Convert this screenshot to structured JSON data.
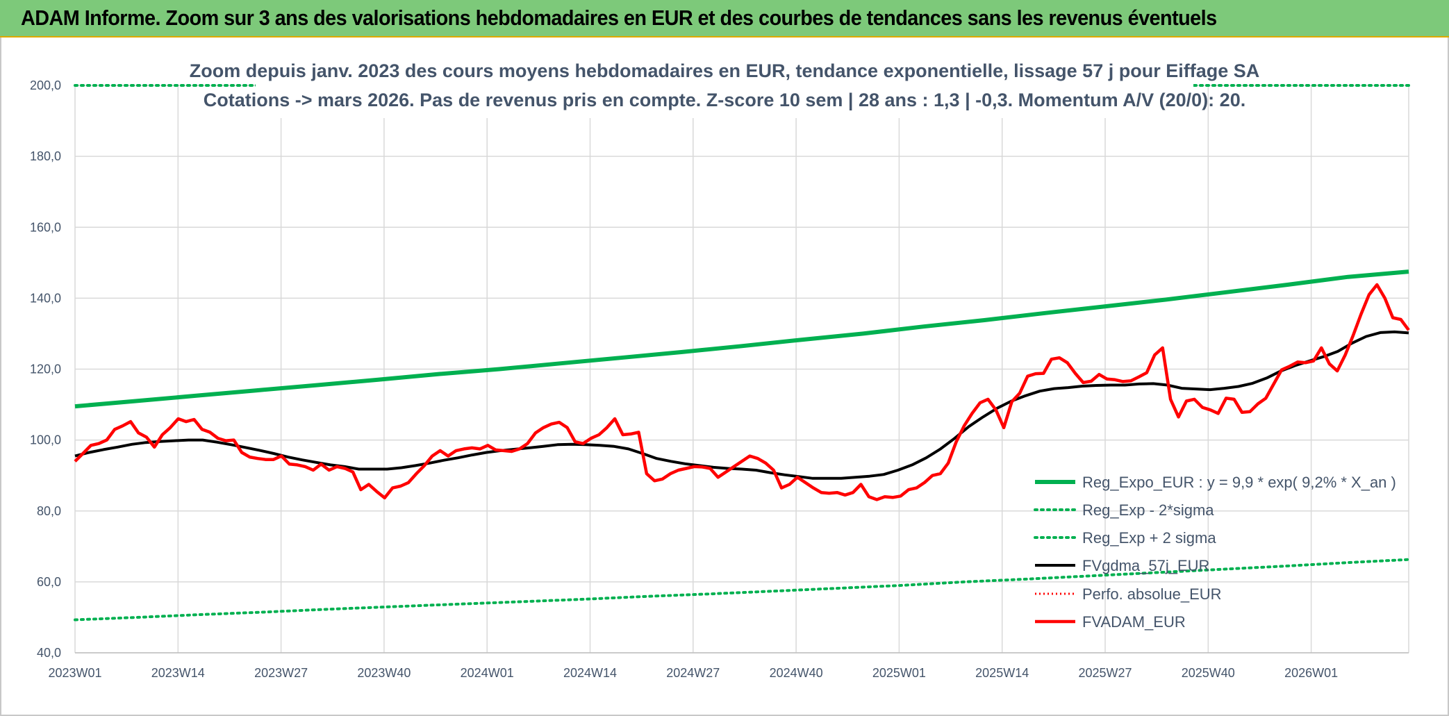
{
  "banner": {
    "title": "ADAM Informe. Zoom sur 3 ans des valorisations hebdomadaires en EUR et des courbes de tendances sans les revenus éventuels"
  },
  "chart_data": {
    "type": "line",
    "title_line1": "Zoom depuis janv. 2023 des cours moyens hebdomadaires en EUR, tendance exponentielle, lissage 57 j pour Eiffage SA",
    "title_line2": "Cotations -> mars 2026. Pas de revenus pris en compte. Z-score 10 sem | 28 ans : 1,3 | -0,3. Momentum A/V (20/0): 20.",
    "ylim": [
      40,
      200
    ],
    "yticks": [
      "40,0",
      "60,0",
      "80,0",
      "100,0",
      "120,0",
      "140,0",
      "160,0",
      "180,0",
      "200,0"
    ],
    "xticks": [
      "2023W01",
      "2023W14",
      "2023W27",
      "2023W40",
      "2024W01",
      "2024W14",
      "2024W27",
      "2024W40",
      "2025W01",
      "2025W14",
      "2025W27",
      "2025W40",
      "2026W01"
    ],
    "grid": true,
    "legend_position": "bottom-right",
    "series": [
      {
        "name": "Reg_Expo_EUR : y = 9,9 * exp( 9,2% *  X_an )",
        "color": "#00b050",
        "style": "solid-thick",
        "values": [
          109.5,
          111,
          112.5,
          114,
          115.5,
          117,
          118.6,
          120,
          121.6,
          123.2,
          124.8,
          126.5,
          128.3,
          130,
          132,
          133.8,
          135.8,
          137.7,
          139.6,
          141.7,
          143.8,
          146,
          147.5
        ]
      },
      {
        "name": "Reg_Exp - 2*sigma",
        "color": "#00b050",
        "style": "dotted",
        "values": [
          49.3,
          50,
          50.8,
          51.5,
          52.3,
          53,
          53.7,
          54.4,
          55.1,
          55.9,
          56.6,
          57.4,
          58.2,
          59,
          60,
          60.8,
          61.7,
          62.6,
          63.5,
          64.4,
          65.4,
          66.3
        ]
      },
      {
        "name": "Reg_Exp + 2 sigma",
        "color": "#00b050",
        "style": "dotted-top",
        "values": [
          200,
          200
        ]
      },
      {
        "name": "FVgdma_57j_EUR",
        "color": "#000000",
        "style": "solid",
        "values": [
          95.5,
          96.5,
          97.3,
          98,
          98.8,
          99.3,
          99.6,
          99.8,
          100,
          100,
          99.4,
          98.7,
          97.9,
          97.1,
          96.2,
          95.2,
          94.4,
          93.7,
          93,
          92.5,
          91.8,
          91.8,
          91.8,
          92.2,
          92.8,
          93.5,
          94.3,
          95,
          95.8,
          96.5,
          97,
          97.4,
          97.8,
          98.2,
          98.7,
          98.8,
          98.7,
          98.5,
          98.2,
          97.5,
          96.2,
          94.8,
          94,
          93.3,
          92.8,
          92.3,
          92,
          91.8,
          91.5,
          90.8,
          90.2,
          89.7,
          89.2,
          89.2,
          89.2,
          89.5,
          89.8,
          90.3,
          91.5,
          93,
          95,
          97.5,
          100.5,
          103.8,
          106.5,
          109,
          111,
          112.5,
          113.8,
          114.5,
          114.8,
          115.2,
          115.4,
          115.5,
          115.5,
          115.8,
          115.9,
          115.5,
          114.6,
          114.4,
          114.2,
          114.6,
          115.1,
          116,
          117.5,
          119.5,
          121,
          122.3,
          123.5,
          125,
          127.3,
          129.2,
          130.3,
          130.5,
          130.2
        ]
      },
      {
        "name": "Perfo. absolue_EUR",
        "color": "#ff0000",
        "style": "dotted-red",
        "values": []
      },
      {
        "name": "FVADAM_EUR",
        "color": "#ff0000",
        "style": "solid-red",
        "values": [
          94,
          96.2,
          98.5,
          99,
          100,
          103,
          104,
          105.2,
          102,
          100.8,
          98,
          101.5,
          103.5,
          106,
          105.2,
          105.8,
          103,
          102.2,
          100.5,
          99.8,
          100,
          96.5,
          95.2,
          94.8,
          94.5,
          94.5,
          95.5,
          93.2,
          93,
          92.5,
          91.5,
          93.2,
          91.5,
          92.5,
          92,
          91,
          86,
          87.5,
          85.5,
          83.7,
          86.5,
          87,
          88,
          90.5,
          92.8,
          95.5,
          97,
          95.5,
          97,
          97.5,
          97.8,
          97.5,
          98.5,
          97.2,
          97,
          96.8,
          97.5,
          99,
          102,
          103.5,
          104.5,
          105,
          103.5,
          99.5,
          99,
          100.5,
          101.5,
          103.5,
          106,
          101.5,
          101.7,
          102.2,
          90.5,
          88.5,
          89,
          90.5,
          91.5,
          92,
          92.5,
          92.4,
          92,
          89.5,
          91,
          92.5,
          94,
          95.5,
          94.8,
          93.5,
          91.5,
          86.5,
          87.5,
          89.5,
          88,
          86.5,
          85.2,
          85,
          85.2,
          84.5,
          85.2,
          87.5,
          84,
          83.2,
          84,
          83.8,
          84.2,
          86,
          86.5,
          88,
          90,
          90.5,
          93.5,
          99.5,
          104,
          107.5,
          110.5,
          111.5,
          108.5,
          103.5,
          110.8,
          113.2,
          118,
          118.7,
          118.8,
          122.8,
          123.2,
          121.8,
          118.8,
          116.2,
          116.6,
          118.5,
          117.2,
          117,
          116.5,
          116.7,
          117.8,
          119,
          124,
          126,
          111.5,
          106.5,
          111,
          111.5,
          109.2,
          108.5,
          107.5,
          111.8,
          111.5,
          107.8,
          108,
          110.2,
          111.8,
          115.8,
          119.8,
          120.8,
          122,
          121.8,
          122.3,
          126,
          121.5,
          119.5,
          124,
          129.5,
          135.5,
          141,
          143.8,
          140,
          134.5,
          134,
          131
        ]
      }
    ]
  }
}
